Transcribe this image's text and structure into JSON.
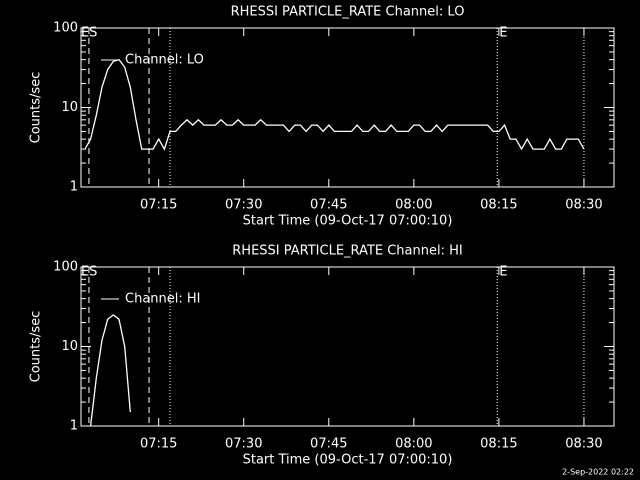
{
  "chart_data": [
    {
      "type": "line",
      "title": "RHESSI PARTICLE_RATE Channel: LO",
      "xlabel": "Start Time (09-Oct-17 07:00:10)",
      "ylabel": "Counts/sec",
      "log_y": true,
      "xlim": [
        1.3,
        95.3
      ],
      "ylim": [
        1,
        100
      ],
      "yticks": [
        1,
        10,
        100
      ],
      "xticks": [
        {
          "value": 15,
          "label": "07:15"
        },
        {
          "value": 30,
          "label": "07:30"
        },
        {
          "value": 45,
          "label": "07:45"
        },
        {
          "value": 60,
          "label": "08:00"
        },
        {
          "value": 75,
          "label": "08:15"
        },
        {
          "value": 90,
          "label": "08:30"
        }
      ],
      "markers": [
        {
          "x": 2.7,
          "label": "ES",
          "style": "dashed"
        },
        {
          "x": 13.3,
          "style": "dashed"
        },
        {
          "x": 17.0,
          "style": "dotted"
        },
        {
          "x": 74.7,
          "label": "E",
          "style": "dotted"
        },
        {
          "x": 90.0,
          "style": "dotted"
        }
      ],
      "series": [
        {
          "name": "Channel: LO",
          "color": "#ffffff",
          "x": [
            2,
            3,
            4,
            5,
            6,
            7,
            8,
            9,
            10,
            11,
            12,
            13,
            14,
            15,
            16,
            17,
            18,
            19,
            20,
            21,
            22,
            23,
            24,
            25,
            26,
            27,
            28,
            29,
            30,
            31,
            32,
            33,
            34,
            35,
            36,
            37,
            38,
            39,
            40,
            41,
            42,
            43,
            44,
            45,
            46,
            47,
            48,
            49,
            50,
            51,
            52,
            53,
            54,
            55,
            56,
            57,
            58,
            59,
            60,
            61,
            62,
            63,
            64,
            65,
            66,
            67,
            68,
            69,
            70,
            71,
            72,
            73,
            74,
            75,
            76,
            77,
            78,
            79,
            80,
            81,
            82,
            83,
            84,
            85,
            86,
            87,
            88,
            89,
            90
          ],
          "values": [
            3,
            4,
            8,
            18,
            30,
            38,
            40,
            32,
            18,
            7,
            3,
            3,
            3,
            4,
            3,
            5,
            5,
            6,
            7,
            6,
            7,
            6,
            6,
            6,
            7,
            6,
            6,
            7,
            6,
            6,
            6,
            7,
            6,
            6,
            6,
            6,
            5,
            6,
            6,
            5,
            6,
            6,
            5,
            6,
            5,
            5,
            5,
            5,
            6,
            5,
            5,
            6,
            5,
            5,
            6,
            5,
            5,
            5,
            6,
            6,
            5,
            5,
            6,
            5,
            6,
            6,
            6,
            6,
            6,
            6,
            6,
            6,
            5,
            5,
            6,
            4,
            4,
            3,
            4,
            3,
            3,
            3,
            4,
            3,
            3,
            4,
            4,
            4,
            3
          ]
        }
      ]
    },
    {
      "type": "line",
      "title": "RHESSI PARTICLE_RATE Channel: HI",
      "xlabel": "Start Time (09-Oct-17 07:00:10)",
      "ylabel": "Counts/sec",
      "log_y": true,
      "xlim": [
        1.3,
        95.3
      ],
      "ylim": [
        1,
        100
      ],
      "yticks": [
        1,
        10,
        100
      ],
      "xticks": [
        {
          "value": 15,
          "label": "07:15"
        },
        {
          "value": 30,
          "label": "07:30"
        },
        {
          "value": 45,
          "label": "07:45"
        },
        {
          "value": 60,
          "label": "08:00"
        },
        {
          "value": 75,
          "label": "08:15"
        },
        {
          "value": 90,
          "label": "08:30"
        }
      ],
      "markers": [
        {
          "x": 2.7,
          "label": "ES",
          "style": "dashed"
        },
        {
          "x": 13.3,
          "style": "dashed"
        },
        {
          "x": 17.0,
          "style": "dotted"
        },
        {
          "x": 74.7,
          "label": "E",
          "style": "dotted"
        },
        {
          "x": 90.0,
          "style": "dotted"
        }
      ],
      "series": [
        {
          "name": "Channel: HI",
          "color": "#ffffff",
          "x": [
            3,
            4,
            5,
            6,
            7,
            8,
            9,
            10
          ],
          "values": [
            1,
            4,
            12,
            22,
            25,
            22,
            10,
            1.5
          ]
        }
      ]
    }
  ],
  "footer": "2-Sep-2022 02:22"
}
